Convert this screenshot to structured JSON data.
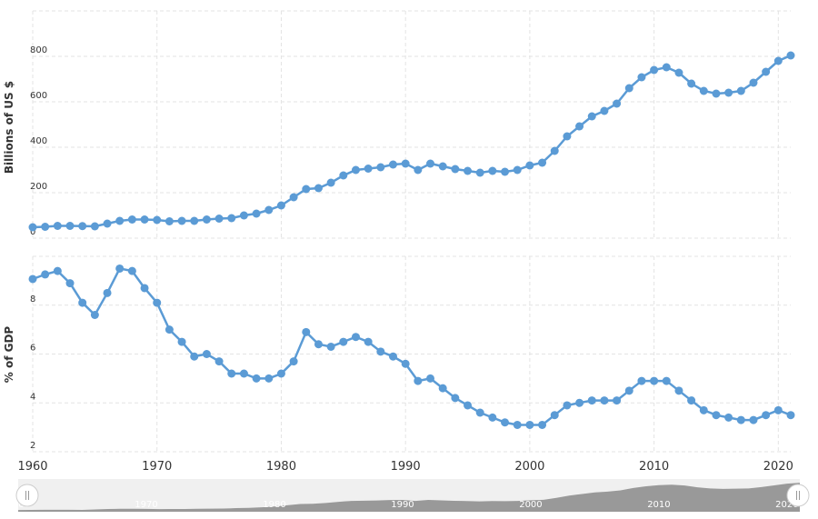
{
  "chart_data": [
    {
      "type": "line",
      "y_label": "Billions of US $",
      "x": [
        1960,
        1961,
        1962,
        1963,
        1964,
        1965,
        1966,
        1967,
        1968,
        1969,
        1970,
        1971,
        1972,
        1973,
        1974,
        1975,
        1976,
        1977,
        1978,
        1979,
        1980,
        1981,
        1982,
        1983,
        1984,
        1985,
        1986,
        1987,
        1988,
        1989,
        1990,
        1991,
        1992,
        1993,
        1994,
        1995,
        1996,
        1997,
        1998,
        1999,
        2000,
        2001,
        2002,
        2003,
        2004,
        2005,
        2006,
        2007,
        2008,
        2009,
        2010,
        2011,
        2012,
        2013,
        2014,
        2015,
        2016,
        2017,
        2018,
        2019,
        2020,
        2021
      ],
      "series": [
        {
          "color": "#5b9bd5",
          "values": [
            48,
            50,
            54,
            54,
            53,
            52,
            64,
            76,
            82,
            82,
            80,
            74,
            76,
            76,
            82,
            86,
            88,
            100,
            108,
            124,
            144,
            180,
            216,
            220,
            244,
            276,
            300,
            306,
            312,
            324,
            328,
            300,
            328,
            316,
            304,
            296,
            288,
            296,
            292,
            300,
            320,
            332,
            384,
            448,
            492,
            536,
            560,
            592,
            660,
            708,
            740,
            752,
            728,
            680,
            648,
            636,
            640,
            648,
            684,
            732,
            780,
            804
          ]
        }
      ],
      "xlim": [
        1960,
        2021
      ],
      "ylim": [
        0,
        1000
      ],
      "yticks": [
        0,
        200,
        400,
        600,
        800
      ],
      "grid": true
    },
    {
      "type": "line",
      "y_label": "% of GDP",
      "x": [
        1960,
        1961,
        1962,
        1963,
        1964,
        1965,
        1966,
        1967,
        1968,
        1969,
        1970,
        1971,
        1972,
        1973,
        1974,
        1975,
        1976,
        1977,
        1978,
        1979,
        1980,
        1981,
        1982,
        1983,
        1984,
        1985,
        1986,
        1987,
        1988,
        1989,
        1990,
        1991,
        1992,
        1993,
        1994,
        1995,
        1996,
        1997,
        1998,
        1999,
        2000,
        2001,
        2002,
        2003,
        2004,
        2005,
        2006,
        2007,
        2008,
        2009,
        2010,
        2011,
        2012,
        2013,
        2014,
        2015,
        2016,
        2017,
        2018,
        2019,
        2020,
        2021
      ],
      "series": [
        {
          "color": "#5b9bd5",
          "values": [
            9.07,
            9.26,
            9.4,
            8.9,
            8.1,
            7.6,
            8.5,
            9.5,
            9.4,
            8.7,
            8.1,
            7.0,
            6.5,
            5.9,
            6.0,
            5.7,
            5.2,
            5.2,
            5.0,
            5.0,
            5.2,
            5.7,
            6.9,
            6.4,
            6.3,
            6.5,
            6.7,
            6.5,
            6.1,
            5.9,
            5.6,
            4.9,
            5.0,
            4.6,
            4.2,
            3.9,
            3.6,
            3.4,
            3.2,
            3.1,
            3.1,
            3.1,
            3.5,
            3.9,
            4.0,
            4.1,
            4.1,
            4.1,
            4.5,
            4.9,
            4.9,
            4.9,
            4.5,
            4.1,
            3.7,
            3.5,
            3.4,
            3.3,
            3.3,
            3.5,
            3.7,
            3.5
          ]
        }
      ],
      "xlim": [
        1960,
        2021
      ],
      "xticks": [
        1960,
        1970,
        1980,
        1990,
        2000,
        2010,
        2020
      ],
      "ylim": [
        2,
        10
      ],
      "yticks": [
        2,
        4,
        6,
        8
      ],
      "grid": true
    }
  ]
}
